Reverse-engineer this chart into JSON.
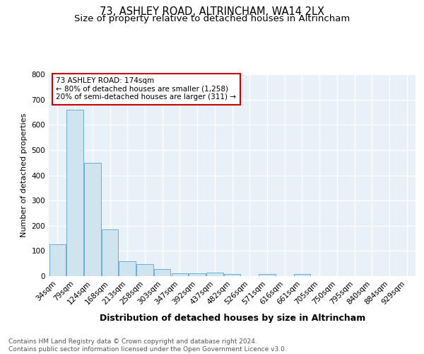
{
  "title1": "73, ASHLEY ROAD, ALTRINCHAM, WA14 2LX",
  "title2": "Size of property relative to detached houses in Altrincham",
  "xlabel": "Distribution of detached houses by size in Altrincham",
  "ylabel": "Number of detached properties",
  "categories": [
    "34sqm",
    "79sqm",
    "124sqm",
    "168sqm",
    "213sqm",
    "258sqm",
    "303sqm",
    "347sqm",
    "392sqm",
    "437sqm",
    "482sqm",
    "526sqm",
    "571sqm",
    "616sqm",
    "661sqm",
    "705sqm",
    "750sqm",
    "795sqm",
    "840sqm",
    "884sqm",
    "929sqm"
  ],
  "values": [
    125,
    660,
    450,
    185,
    60,
    47,
    28,
    11,
    12,
    15,
    9,
    0,
    8,
    0,
    8,
    0,
    0,
    0,
    0,
    0,
    0
  ],
  "bar_color": "#d0e4f0",
  "bar_edge_color": "#6aaed6",
  "annotation_text": "73 ASHLEY ROAD: 174sqm\n← 80% of detached houses are smaller (1,258)\n20% of semi-detached houses are larger (311) →",
  "annotation_box_color": "white",
  "annotation_box_edge_color": "#cc0000",
  "ylim": [
    0,
    800
  ],
  "yticks": [
    0,
    100,
    200,
    300,
    400,
    500,
    600,
    700,
    800
  ],
  "footer_text": "Contains HM Land Registry data © Crown copyright and database right 2024.\nContains public sector information licensed under the Open Government Licence v3.0.",
  "plot_bg_color": "#e8f0f8",
  "fig_bg_color": "#ffffff",
  "grid_color": "#ffffff",
  "title1_fontsize": 10.5,
  "title2_fontsize": 9.5,
  "xlabel_fontsize": 9,
  "ylabel_fontsize": 8,
  "tick_fontsize": 7.5,
  "footer_fontsize": 6.5
}
